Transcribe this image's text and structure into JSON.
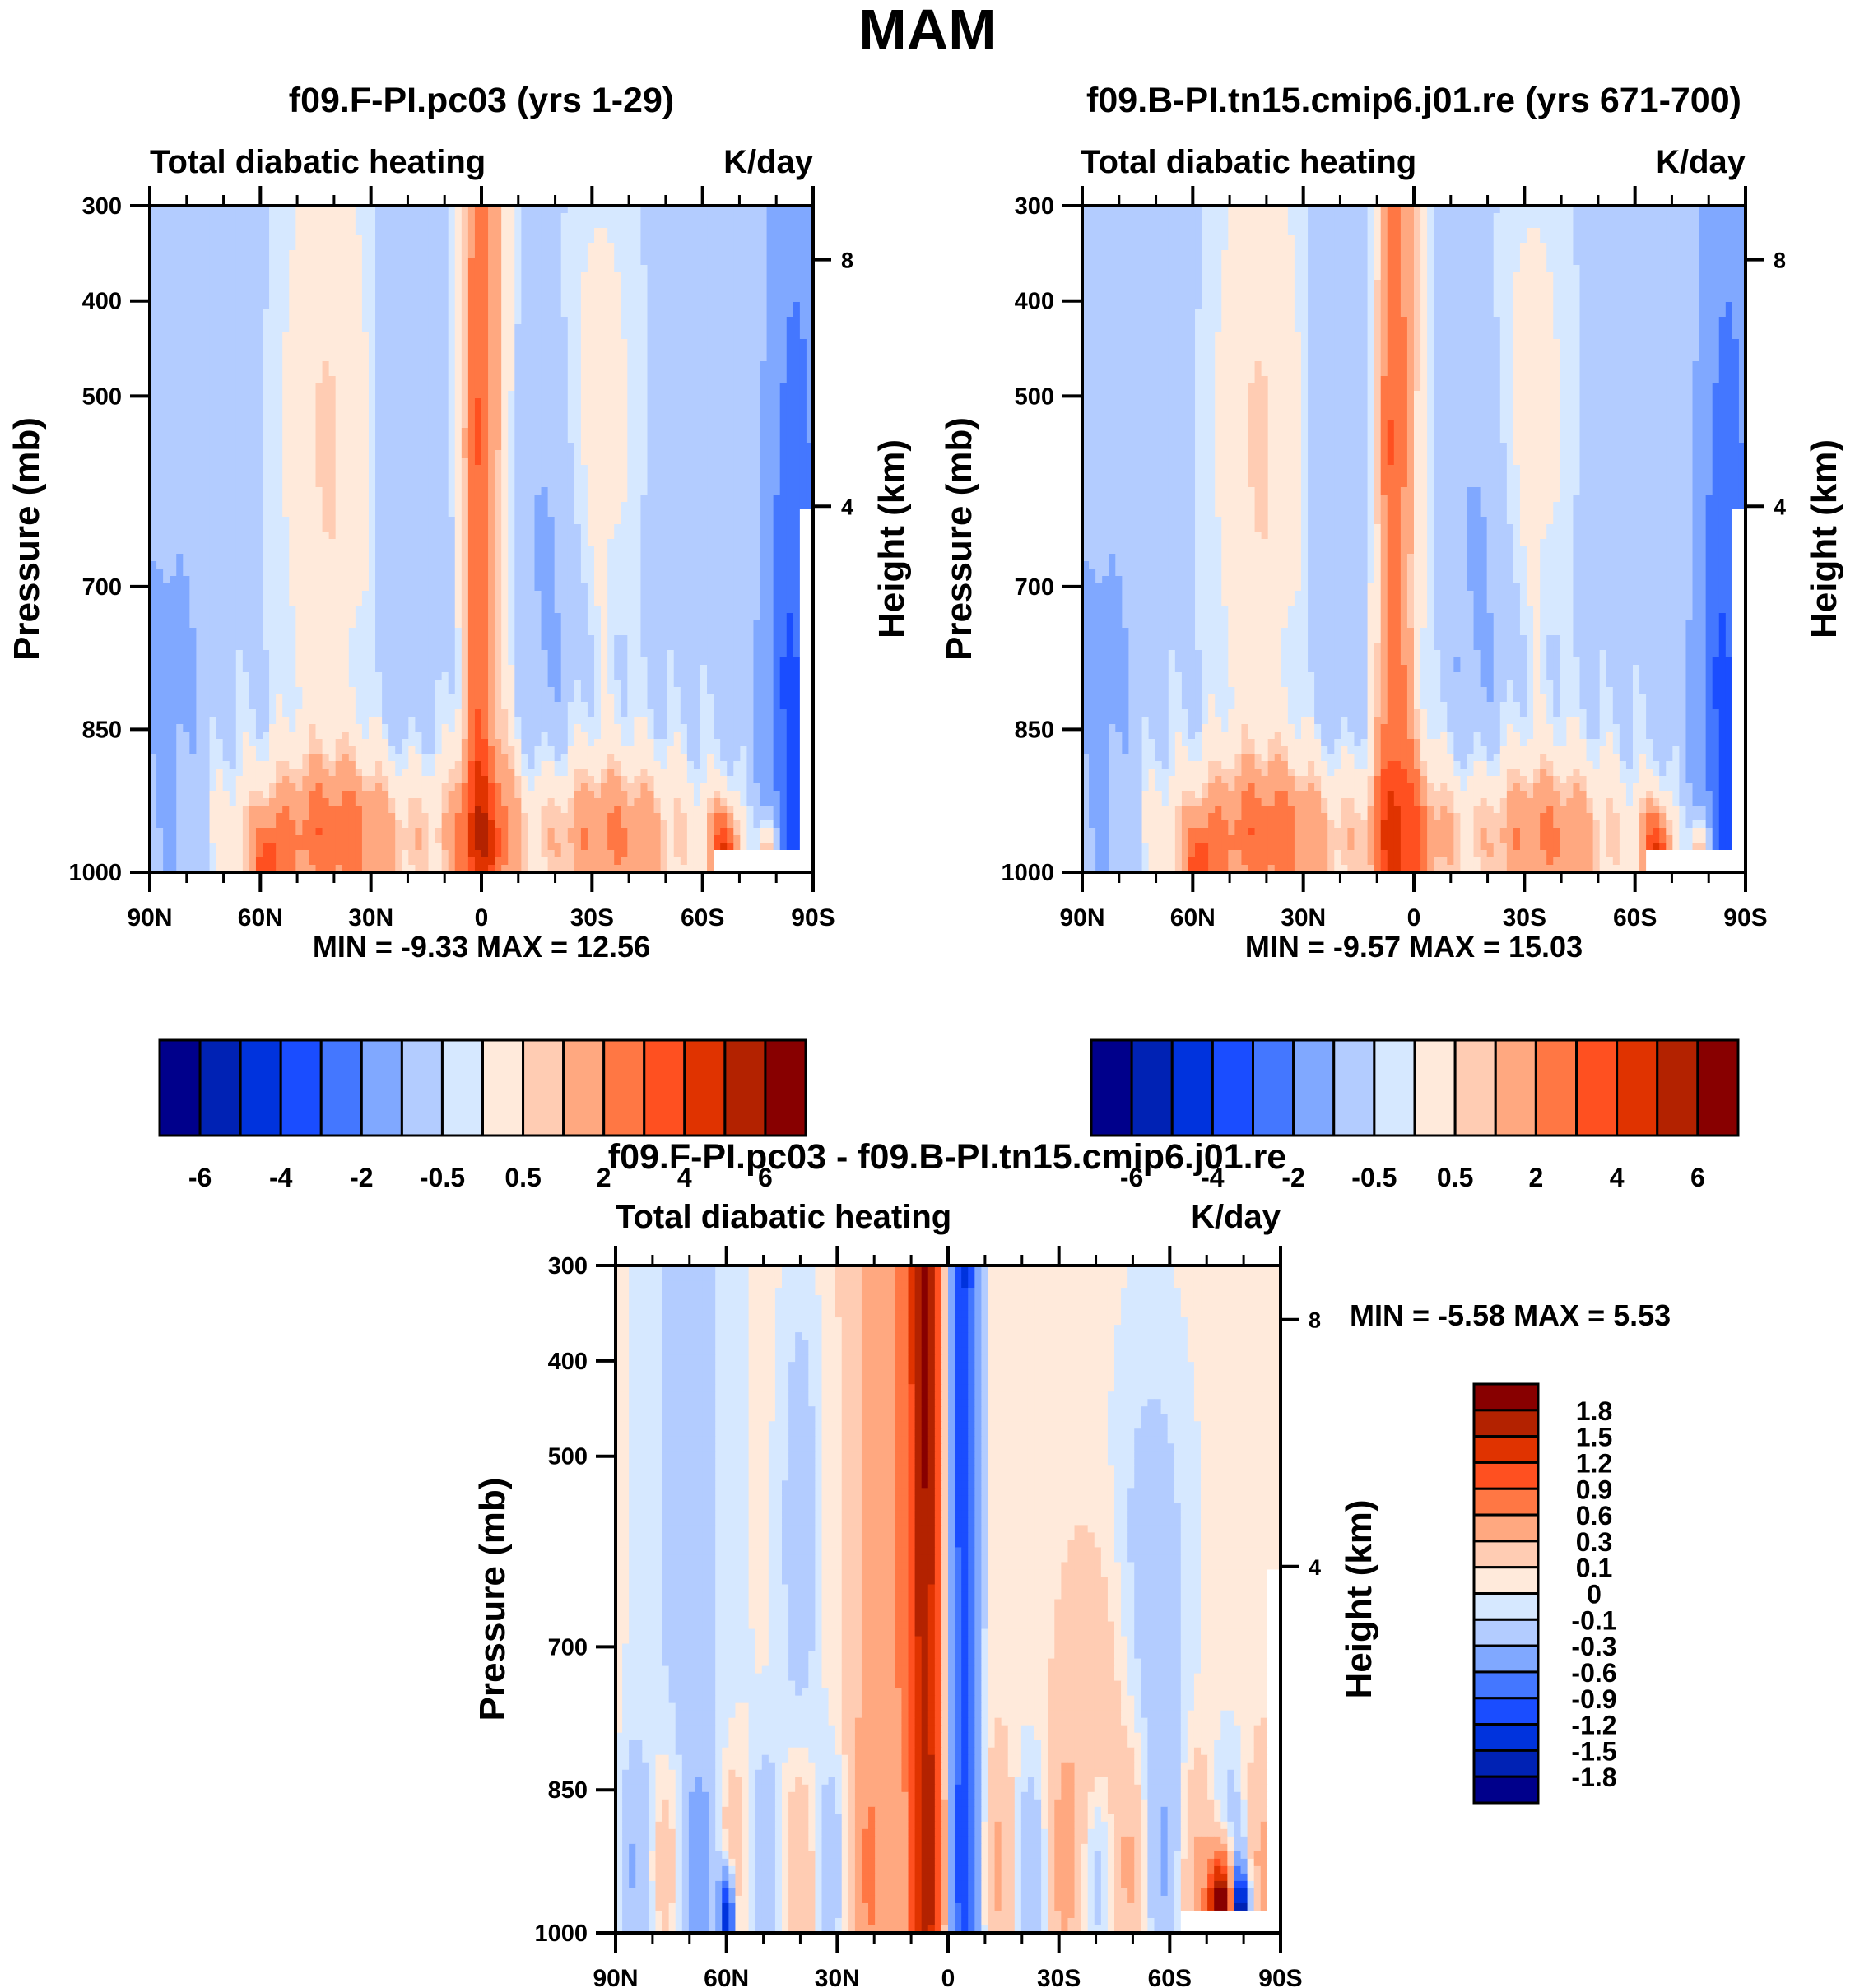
{
  "figure": {
    "title": "MAM"
  },
  "chart_data": [
    {
      "type": "heatmap",
      "id": "panel1",
      "title": "f09.F-PI.pc03 (yrs 1-29)",
      "left_string": "Total diabatic heating",
      "right_string": "K/day",
      "xlabel": "",
      "ylabel": "Pressure (mb)",
      "y2label": "Height (km)",
      "x_ticks": [
        "90N",
        "60N",
        "30N",
        "0",
        "30S",
        "60S",
        "90S"
      ],
      "x_range_lat": [
        90,
        -90
      ],
      "y_ticks": [
        "300",
        "400",
        "500",
        "700",
        "850",
        "1000"
      ],
      "y_range_mb": [
        300,
        1000
      ],
      "y2_ticks": [
        "8",
        "4"
      ],
      "stats": "MIN =  -9.33  MAX =  12.56",
      "min": -9.33,
      "max": 12.56,
      "colorbar": {
        "orientation": "horizontal",
        "levels": [
          -7,
          -6,
          -5,
          -4,
          -3,
          -2,
          -1,
          -0.5,
          0.5,
          1,
          2,
          3,
          4,
          5,
          6
        ],
        "labels": [
          "-6",
          "-4",
          "-2",
          "-0.5",
          "0.5",
          "2",
          "4",
          "6"
        ]
      }
    },
    {
      "type": "heatmap",
      "id": "panel2",
      "title": "f09.B-PI.tn15.cmip6.j01.re (yrs 671-700)",
      "left_string": "Total diabatic heating",
      "right_string": "K/day",
      "xlabel": "",
      "ylabel": "Pressure (mb)",
      "y2label": "Height (km)",
      "x_ticks": [
        "90N",
        "60N",
        "30N",
        "0",
        "30S",
        "60S",
        "90S"
      ],
      "x_range_lat": [
        90,
        -90
      ],
      "y_ticks": [
        "300",
        "400",
        "500",
        "700",
        "850",
        "1000"
      ],
      "y_range_mb": [
        300,
        1000
      ],
      "y2_ticks": [
        "8",
        "4"
      ],
      "stats": "MIN =  -9.57  MAX =  15.03",
      "min": -9.57,
      "max": 15.03,
      "colorbar": {
        "orientation": "horizontal",
        "levels": [
          -7,
          -6,
          -5,
          -4,
          -3,
          -2,
          -1,
          -0.5,
          0.5,
          1,
          2,
          3,
          4,
          5,
          6
        ],
        "labels": [
          "-6",
          "-4",
          "-2",
          "-0.5",
          "0.5",
          "2",
          "4",
          "6"
        ]
      }
    },
    {
      "type": "heatmap",
      "id": "panel3",
      "title": "f09.F-PI.pc03 - f09.B-PI.tn15.cmip6.j01.re",
      "left_string": "Total diabatic heating",
      "right_string": "K/day",
      "xlabel": "",
      "ylabel": "Pressure (mb)",
      "y2label": "Height (km)",
      "x_ticks": [
        "90N",
        "60N",
        "30N",
        "0",
        "30S",
        "60S",
        "90S"
      ],
      "x_range_lat": [
        90,
        -90
      ],
      "y_ticks": [
        "300",
        "400",
        "500",
        "700",
        "850",
        "1000"
      ],
      "y_range_mb": [
        300,
        1000
      ],
      "y2_ticks": [
        "8",
        "4"
      ],
      "stats": "MIN =  -5.58  MAX =   5.53",
      "min": -5.58,
      "max": 5.53,
      "colorbar": {
        "orientation": "vertical",
        "levels": [
          -1.8,
          -1.5,
          -1.2,
          -0.9,
          -0.6,
          -0.3,
          -0.1,
          0,
          0.1,
          0.3,
          0.6,
          0.9,
          1.2,
          1.5,
          1.8
        ],
        "labels": [
          "-1.8",
          "-1.5",
          "-1.2",
          "-0.9",
          "-0.6",
          "-0.3",
          "-0.1",
          "0",
          "0.1",
          "0.3",
          "0.6",
          "0.9",
          "1.2",
          "1.5",
          "1.8"
        ]
      }
    }
  ],
  "colormap": [
    "#00008b",
    "#0022b4",
    "#0033dd",
    "#1a4dff",
    "#4477ff",
    "#80a8ff",
    "#b3ccff",
    "#d6e8ff",
    "#ffeadb",
    "#ffccb3",
    "#ffa880",
    "#ff7744",
    "#ff5020",
    "#e03300",
    "#b32200",
    "#880000"
  ]
}
